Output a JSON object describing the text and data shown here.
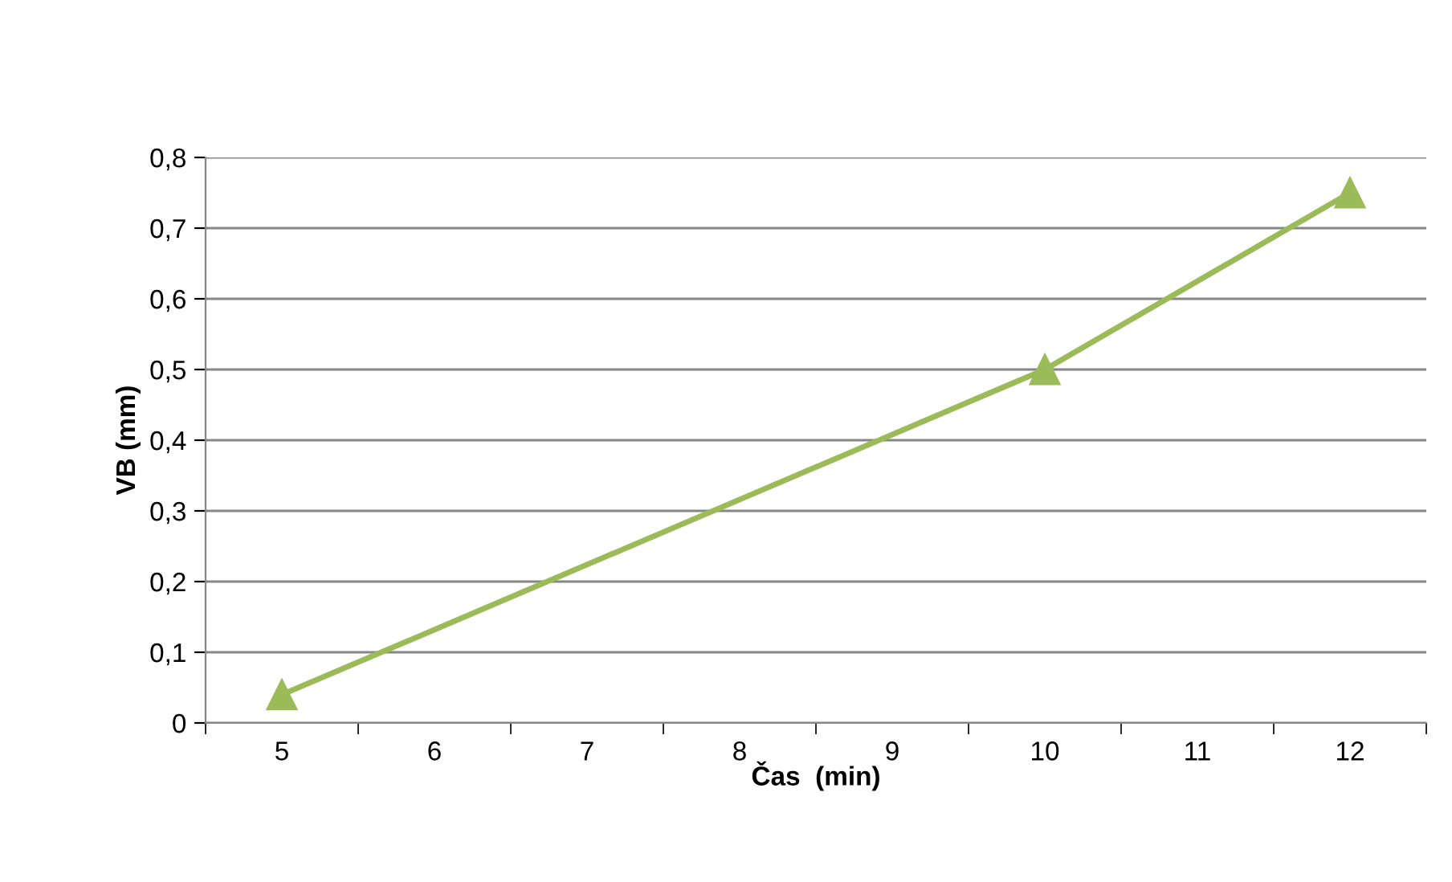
{
  "chart_data": {
    "type": "line",
    "xlabel": "Čas  (min)",
    "ylabel": "VB (mm)",
    "categories": [
      "5",
      "6",
      "7",
      "8",
      "9",
      "10",
      "11",
      "12"
    ],
    "series": [
      {
        "color": "#9bbb59",
        "values": [
          0.04,
          null,
          null,
          null,
          null,
          0.5,
          null,
          0.75
        ]
      }
    ],
    "ylim": [
      0,
      0.8
    ],
    "yticks": [
      0,
      {
        "value": 0.1,
        "label": "0,1"
      },
      {
        "value": 0.2,
        "label": "0,2"
      },
      {
        "value": 0.3,
        "label": "0,3"
      },
      {
        "value": 0.4,
        "label": "0,4"
      },
      {
        "value": 0.5,
        "label": "0,5"
      },
      {
        "value": 0.6,
        "label": "0,6"
      },
      {
        "value": 0.7,
        "label": "0,7"
      },
      {
        "value": 0.8,
        "label": "0,8"
      }
    ],
    "grid": "y",
    "marker": "triangle",
    "line_style": "solid",
    "legend": false
  }
}
